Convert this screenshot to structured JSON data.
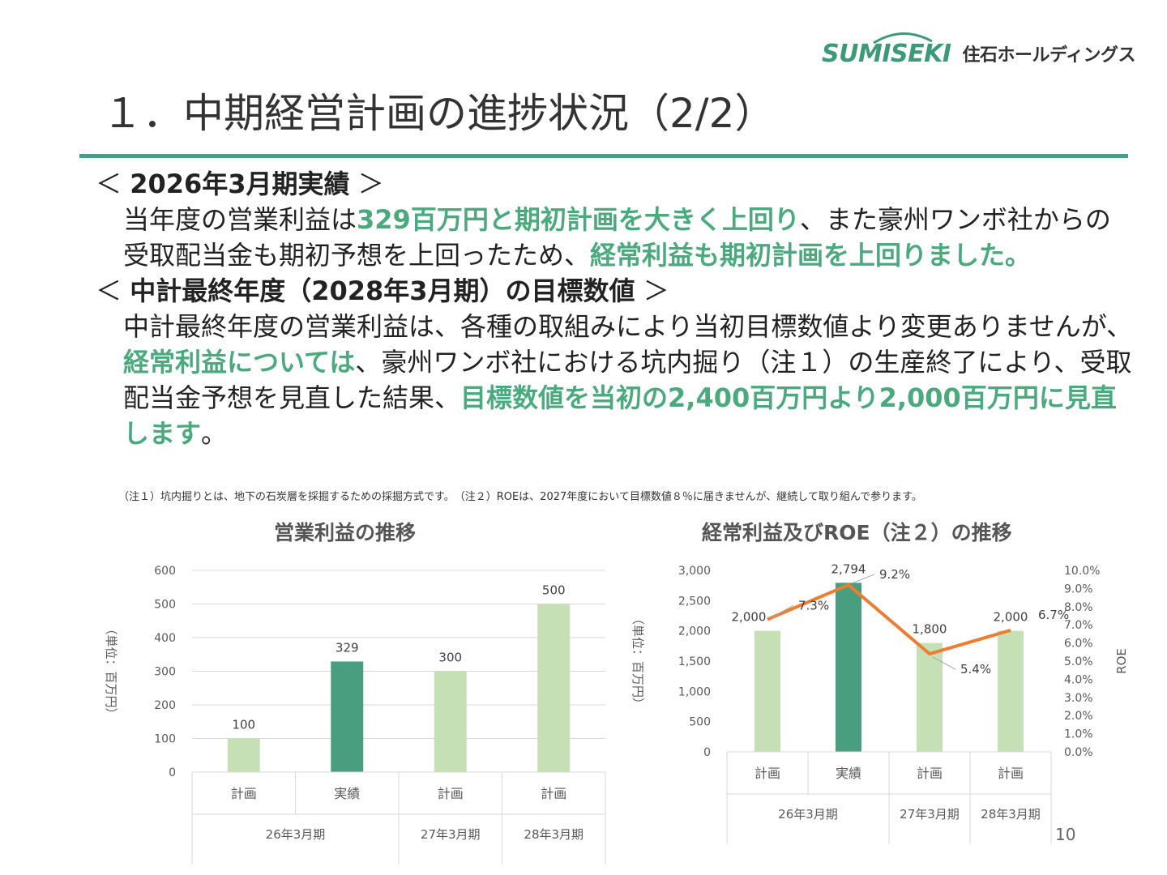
{
  "header": {
    "logo_mark": "SUMISEKI",
    "logo_text": "住石ホールディングス",
    "title": "１．中期経営計画の進捗状況（2/2）"
  },
  "sections": {
    "s1": {
      "heading": "2026年3月期実績",
      "open": "＜ ",
      "close": " ＞",
      "p1": "当年度の営業利益は",
      "h1": "329百万円と期初計画を大きく上回り",
      "p2": "、また豪州ワンボ社からの受取配当金も期初予想を上回ったため、",
      "h2": "経常利益も期初計画を上回りました。"
    },
    "s2": {
      "heading": "中計最終年度（2028年3月期）の目標数値",
      "open": "＜ ",
      "close": " ＞",
      "p1": "中計最終年度の営業利益は、各種の取組みにより当初目標数値より変更ありませんが、",
      "h1": "経常利益については",
      "p2": "、豪州ワンボ社における坑内掘り（注１）の生産終了により、受取配当金予想を見直した結果、",
      "h2": "目標数値を当初の2,400百万円より2,000百万円に見直します",
      "p3": "。"
    }
  },
  "note": "（注１）坑内掘りとは、地下の石炭層を採掘するための採掘方式です。　（注２）ROEは、2027年度において目標数値８％に届きませんが、継続して取り組んで参ります。",
  "page_number": "10",
  "colors": {
    "accent": "#4a9e80",
    "highlight_text": "#4aaa7e",
    "bar_plan": "#c5e0b4",
    "bar_actual": "#4a9e80",
    "roe_line": "#ed7d31"
  },
  "chart_data": [
    {
      "type": "bar",
      "title": "営業利益の推移",
      "ylabel": "（単位：百万円）",
      "ylim": [
        0,
        600
      ],
      "yticks": [
        "0",
        "100",
        "200",
        "300",
        "400",
        "500",
        "600"
      ],
      "categories": [
        "計画",
        "実績",
        "計画",
        "計画"
      ],
      "groups": [
        {
          "label": "26年3月期",
          "span": 2
        },
        {
          "label": "27年3月期",
          "span": 1
        },
        {
          "label": "28年3月期",
          "span": 1
        }
      ],
      "values": [
        100,
        329,
        300,
        500
      ],
      "labels": [
        "100",
        "329",
        "300",
        "500"
      ],
      "kinds": [
        "plan",
        "actual",
        "plan",
        "plan"
      ],
      "grid": true
    },
    {
      "type": "bar",
      "title": "経常利益及びROE（注２）の推移",
      "ylabel": "（単位：百万円）",
      "y2label": "ROE",
      "ylim": [
        0,
        3000
      ],
      "yticks": [
        "0",
        "500",
        "1,000",
        "1,500",
        "2,000",
        "2,500",
        "3,000"
      ],
      "y2lim": [
        0,
        10
      ],
      "y2ticks": [
        "0.0%",
        "1.0%",
        "2.0%",
        "3.0%",
        "4.0%",
        "5.0%",
        "6.0%",
        "7.0%",
        "8.0%",
        "9.0%",
        "10.0%"
      ],
      "categories": [
        "計画",
        "実績",
        "計画",
        "計画"
      ],
      "groups": [
        {
          "label": "26年3月期",
          "span": 2
        },
        {
          "label": "27年3月期",
          "span": 1
        },
        {
          "label": "28年3月期",
          "span": 1
        }
      ],
      "values": [
        2000,
        2794,
        1800,
        2000
      ],
      "labels": [
        "2,000",
        "2,794",
        "1,800",
        "2,000"
      ],
      "kinds": [
        "plan",
        "actual",
        "plan",
        "plan"
      ],
      "roe": [
        7.3,
        9.2,
        5.4,
        6.7
      ],
      "roe_labels": [
        "7.3%",
        "9.2%",
        "5.4%",
        "6.7%"
      ],
      "grid": false
    }
  ]
}
